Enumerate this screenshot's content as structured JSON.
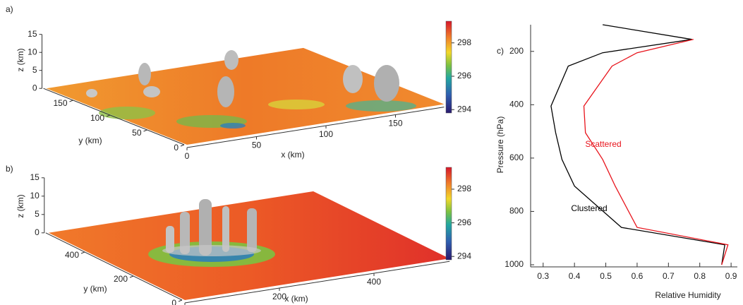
{
  "chart_data": [
    {
      "type": "surface3d",
      "title": "a)",
      "xlabel": "x (km)",
      "ylabel": "y (km)",
      "zlabel": "z (km)",
      "xlim": [
        0,
        185
      ],
      "ylim": [
        0,
        190
      ],
      "zlim": [
        0,
        15
      ],
      "xticks": [
        0,
        50,
        100,
        150
      ],
      "yticks": [
        0,
        50,
        100,
        150
      ],
      "zticks": [
        0,
        5,
        10,
        15
      ],
      "clim": [
        293.8,
        299.3
      ],
      "cticks": [
        294,
        296,
        298
      ]
    },
    {
      "type": "surface3d",
      "title": "b)",
      "xlabel": "x (km)",
      "ylabel": "y (km)",
      "zlabel": "z (km)",
      "xlim": [
        0,
        560
      ],
      "ylim": [
        0,
        560
      ],
      "zlim": [
        0,
        15
      ],
      "xticks": [
        0,
        200,
        400
      ],
      "yticks": [
        0,
        200,
        400
      ],
      "zticks": [
        0,
        5,
        10,
        15
      ],
      "clim": [
        293.8,
        299.3
      ],
      "cticks": [
        294,
        296,
        298
      ]
    },
    {
      "type": "line",
      "title": "c)",
      "xlabel": "Relative Humidity",
      "ylabel": "Pressure (hPa)",
      "y": [
        100,
        155,
        205,
        255,
        405,
        505,
        605,
        705,
        860,
        925,
        1000
      ],
      "series": [
        {
          "name": "Clustered",
          "color": "#000000",
          "values": [
            0.49,
            0.775,
            0.49,
            0.38,
            0.325,
            0.34,
            0.36,
            0.4,
            0.55,
            0.88,
            0.87
          ]
        },
        {
          "name": "Scattered",
          "color": "#e8141c",
          "values": [
            null,
            0.78,
            0.6,
            0.52,
            0.43,
            0.435,
            0.49,
            0.53,
            0.6,
            0.89,
            0.87
          ]
        }
      ],
      "xlim": [
        0.26,
        0.92
      ],
      "ylim": [
        1000,
        100
      ],
      "xticks": [
        0.3,
        0.4,
        0.5,
        0.6,
        0.7,
        0.8,
        0.9
      ],
      "yticks": [
        200,
        400,
        600,
        800,
        1000
      ]
    }
  ]
}
